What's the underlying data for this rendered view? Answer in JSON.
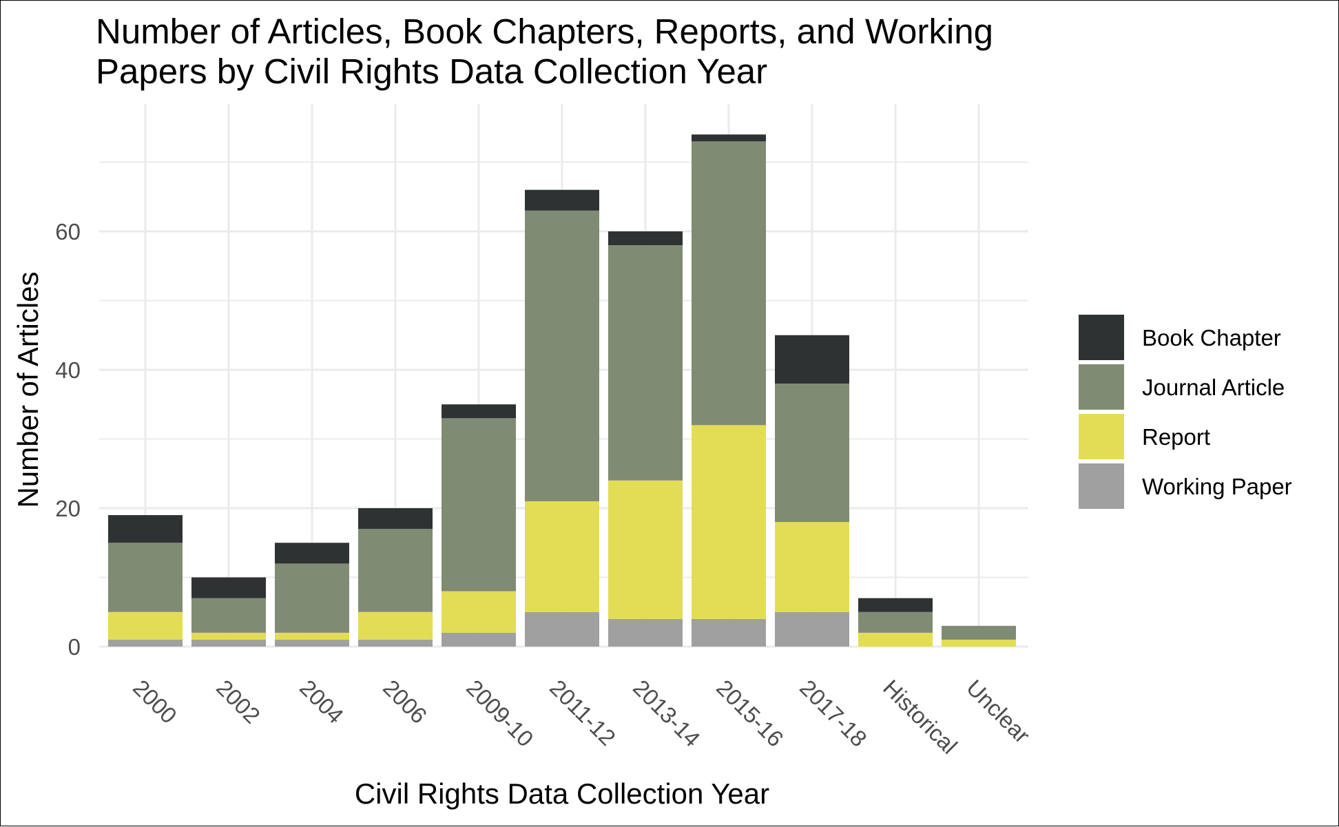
{
  "chart_data": {
    "type": "bar",
    "stacked": true,
    "title_lines": [
      "Number of Articles, Book Chapters, Reports, and Working",
      "Papers by Civil Rights Data Collection Year"
    ],
    "xlabel": "Civil Rights Data Collection Year",
    "ylabel": "Number of Articles",
    "categories": [
      "2000",
      "2002",
      "2004",
      "2006",
      "2009-10",
      "2011-12",
      "2013-14",
      "2015-16",
      "2017-18",
      "Historical",
      "Unclear"
    ],
    "ylim": [
      0,
      75
    ],
    "yticks": [
      "0",
      "20",
      "40",
      "60"
    ],
    "grid": true,
    "legend_position": "right",
    "series": [
      {
        "name": "Working Paper",
        "color": "#a0a0a0",
        "values": [
          1,
          1,
          1,
          1,
          2,
          5,
          4,
          4,
          5,
          0,
          0
        ]
      },
      {
        "name": "Report",
        "color": "#e3dd55",
        "values": [
          4,
          1,
          1,
          4,
          6,
          16,
          20,
          28,
          13,
          2,
          1
        ]
      },
      {
        "name": "Journal Article",
        "color": "#808b73",
        "values": [
          10,
          5,
          10,
          12,
          25,
          42,
          34,
          41,
          20,
          3,
          2
        ]
      },
      {
        "name": "Book Chapter",
        "color": "#2e3233",
        "values": [
          4,
          3,
          3,
          3,
          2,
          3,
          2,
          1,
          7,
          2,
          0
        ]
      }
    ],
    "legend_order": [
      "Book Chapter",
      "Journal Article",
      "Report",
      "Working Paper"
    ]
  }
}
